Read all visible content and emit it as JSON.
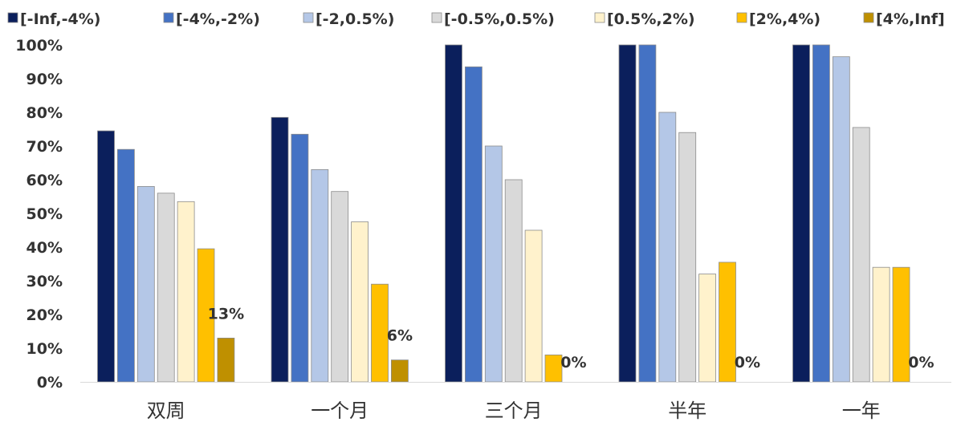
{
  "chart_data": {
    "type": "bar",
    "categories": [
      "双周",
      "一个月",
      "三个月",
      "半年",
      "一年"
    ],
    "ylim": [
      0,
      100
    ],
    "y_ticks": [
      "0%",
      "10%",
      "20%",
      "30%",
      "40%",
      "50%",
      "60%",
      "70%",
      "80%",
      "90%",
      "100%"
    ],
    "grid": false,
    "legend_position": "top",
    "series": [
      {
        "name": "[-Inf,-4%)",
        "color": "#0b1f5c",
        "values": [
          74.5,
          78.5,
          100,
          100,
          100
        ]
      },
      {
        "name": "[-4%,-2%)",
        "color": "#4472c4",
        "values": [
          69,
          73.5,
          93.5,
          100,
          100
        ]
      },
      {
        "name": "[-2,0.5%)",
        "color": "#b4c7e7",
        "values": [
          58,
          63,
          70,
          80,
          96.5
        ]
      },
      {
        "name": "[-0.5%,0.5%)",
        "color": "#d9d9d9",
        "values": [
          56,
          56.5,
          60,
          74,
          75.5
        ]
      },
      {
        "name": "[0.5%,2%)",
        "color": "#fff2cc",
        "values": [
          53.5,
          47.5,
          45,
          32,
          34
        ]
      },
      {
        "name": "[2%,4%)",
        "color": "#ffc000",
        "values": [
          39.5,
          29,
          8,
          35.5,
          34
        ]
      },
      {
        "name": "[4%,Inf]",
        "color": "#bf9000",
        "values": [
          13,
          6.5,
          0,
          0,
          0
        ]
      }
    ],
    "data_labels": {
      "series": "[4%,Inf]",
      "texts": [
        "13%",
        "6%",
        "0%",
        "0%",
        "0%"
      ]
    }
  }
}
